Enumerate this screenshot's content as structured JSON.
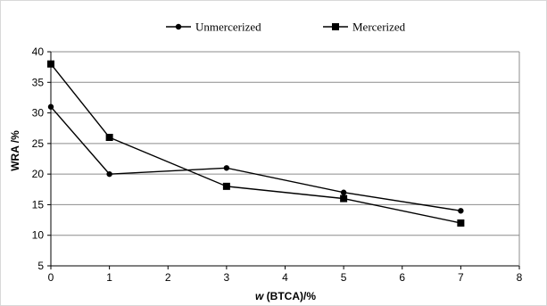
{
  "chart_data": {
    "type": "line",
    "title": "",
    "xlabel_prefix": "w",
    "xlabel_rest": " (BTCA)/%",
    "ylabel": "WRA /%",
    "xlim": [
      0,
      8
    ],
    "ylim": [
      5,
      40
    ],
    "x_ticks": [
      "0",
      "1",
      "2",
      "3",
      "4",
      "5",
      "6",
      "7",
      "8"
    ],
    "y_ticks": [
      "5",
      "10",
      "15",
      "20",
      "25",
      "30",
      "35",
      "40"
    ],
    "grid": "horizontal",
    "legend_position": "top",
    "series": [
      {
        "name": "Unmercerized",
        "marker": "circle",
        "color": "#000000",
        "x": [
          0,
          1,
          3,
          5,
          7
        ],
        "y": [
          31,
          20,
          21,
          17,
          14
        ]
      },
      {
        "name": "Mercerized",
        "marker": "square",
        "color": "#000000",
        "x": [
          0,
          1,
          3,
          5,
          7
        ],
        "y": [
          38,
          26,
          18,
          16,
          12
        ]
      }
    ]
  }
}
